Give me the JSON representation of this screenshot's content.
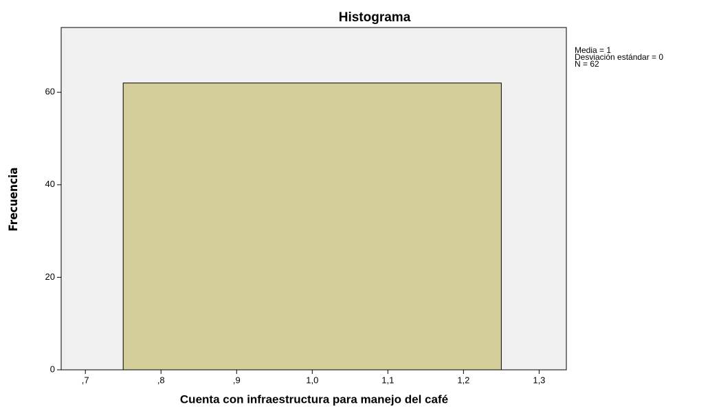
{
  "chart_data": {
    "type": "histogram",
    "title": "Histograma",
    "xlabel": "Cuenta con infraestructura para manejo del café",
    "ylabel": "Frecuencia",
    "bins": [
      0.75,
      1.25
    ],
    "counts": [
      62
    ],
    "color": "#d3ce9a",
    "xlim": [
      0.668,
      1.336
    ],
    "xticks": [
      {
        "value": 0.7,
        "label": ",7"
      },
      {
        "value": 0.8,
        "label": ",8"
      },
      {
        "value": 0.9,
        "label": ",9"
      },
      {
        "value": 1.0,
        "label": "1,0"
      },
      {
        "value": 1.1,
        "label": "1,1"
      },
      {
        "value": 1.2,
        "label": "1,2"
      },
      {
        "value": 1.3,
        "label": "1,3"
      }
    ],
    "ylim": [
      0,
      74
    ],
    "yticks": [
      0,
      20,
      40,
      60
    ],
    "annotations": [
      "Media = 1",
      "Desviación estándar = 0",
      "N = 62"
    ]
  }
}
